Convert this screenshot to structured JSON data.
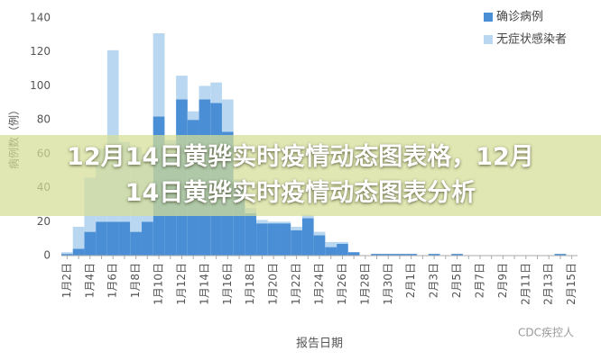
{
  "chart_data": {
    "type": "stacked-bar",
    "y_axis_label": "病例数（例）",
    "x_axis_label": "报告日期",
    "watermark": "CDC疾控人",
    "banner_title": "12月14日黄骅实时疫情动态图表格，12月14日黄骅实时疫情动态图表分析",
    "categories": [
      "1月2日",
      null,
      "1月4日",
      null,
      "1月6日",
      null,
      "1月8日",
      null,
      "1月10日",
      null,
      "1月12日",
      null,
      "1月14日",
      null,
      "1月16日",
      null,
      "1月18日",
      null,
      "1月20日",
      null,
      "1月22日",
      null,
      "1月24日",
      null,
      "1月26日",
      null,
      "1月28日",
      null,
      "1月30日",
      null,
      "2月1日",
      null,
      "2月3日",
      null,
      "2月5日",
      null,
      "2月7日",
      null,
      "2月9日",
      null,
      "2月11日",
      null,
      "2月13日",
      null,
      "2月15日"
    ],
    "series": [
      {
        "name": "确诊病例",
        "color": "#4a8fd6",
        "values": [
          1,
          4,
          14,
          20,
          20,
          20,
          14,
          20,
          82,
          60,
          92,
          80,
          92,
          90,
          73,
          40,
          25,
          19,
          19,
          19,
          15,
          22,
          12,
          5,
          7,
          2,
          0,
          1,
          1,
          1,
          1,
          0,
          1,
          0,
          1,
          0,
          0,
          0,
          0,
          0,
          0,
          0,
          0,
          1,
          0
        ]
      },
      {
        "name": "无症状感染者",
        "color": "#b9d7f1",
        "values": [
          1,
          13,
          32,
          43,
          101,
          47,
          50,
          40,
          49,
          8,
          14,
          5,
          8,
          12,
          19,
          5,
          3,
          2,
          1,
          1,
          2,
          2,
          2,
          3,
          1,
          0,
          0,
          0,
          0,
          0,
          0,
          0,
          0,
          0,
          0,
          0,
          0,
          0,
          0,
          0,
          0,
          0,
          0,
          0,
          0
        ]
      }
    ],
    "ylim": [
      0,
      140
    ],
    "yticks": [
      0,
      20,
      40,
      60,
      80,
      100,
      120,
      140
    ],
    "legend": "top-right",
    "grid": false
  }
}
